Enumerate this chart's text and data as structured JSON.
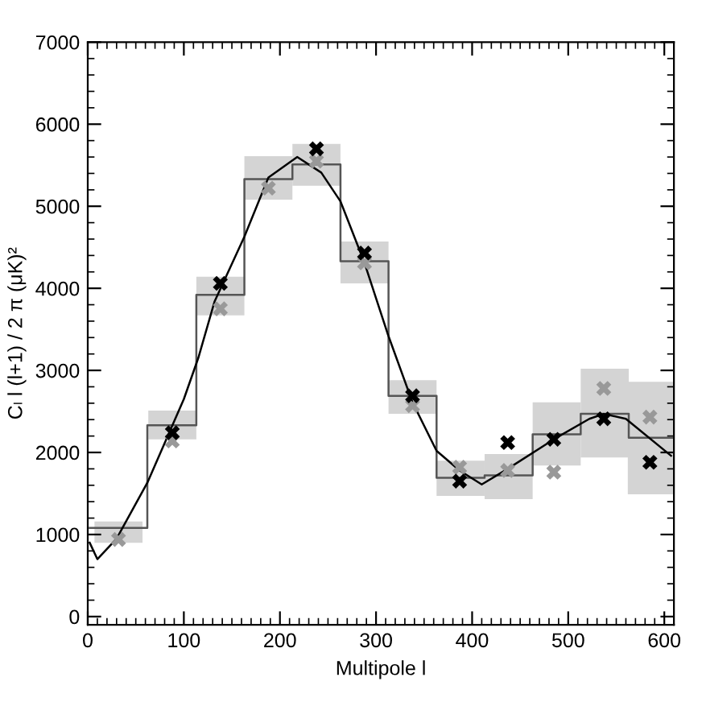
{
  "chart_data": {
    "type": "line",
    "xlabel": "Multipole l",
    "ylabel": "Cₗ l (l+1) / 2 π (μK)²",
    "xlim": [
      0,
      610
    ],
    "ylim": [
      -100,
      7000
    ],
    "xticks": [
      0,
      100,
      200,
      300,
      400,
      500,
      600
    ],
    "yticks": [
      0,
      1000,
      2000,
      3000,
      4000,
      5000,
      6000,
      7000
    ],
    "grid": false,
    "legend": false,
    "series": [
      {
        "type": "bar",
        "color": "#d4d4d4",
        "x": [
          32,
          88,
          138,
          188,
          238,
          288,
          338,
          388,
          438,
          488,
          538,
          587
        ],
        "base": [
          900,
          2160,
          3670,
          5080,
          5250,
          4060,
          2470,
          1470,
          1430,
          1840,
          1940,
          1490
        ],
        "values": [
          260,
          350,
          470,
          530,
          510,
          510,
          410,
          430,
          550,
          770,
          1080,
          1370
        ]
      },
      {
        "type": "step",
        "color": "#555555",
        "x": [
          2,
          62,
          113,
          163,
          213,
          263,
          313,
          363,
          413,
          463,
          513,
          563,
          610
        ],
        "values": [
          1080,
          2330,
          3920,
          5330,
          5510,
          4330,
          2690,
          1690,
          1720,
          2220,
          2470,
          2180,
          2180
        ]
      },
      {
        "color": "#000000",
        "marker": "none",
        "x": [
          2,
          10,
          30,
          62,
          100,
          115,
          132,
          163,
          188,
          218,
          243,
          263,
          288,
          312,
          338,
          363,
          387,
          410,
          437,
          485,
          522,
          537,
          560,
          607
        ],
        "values": [
          900,
          700,
          950,
          1630,
          2650,
          3150,
          3840,
          4630,
          5350,
          5600,
          5410,
          5060,
          4310,
          3450,
          2610,
          2020,
          1780,
          1610,
          1800,
          2160,
          2410,
          2470,
          2410,
          1960
        ]
      },
      {
        "type": "scatter",
        "color": "#999999",
        "marker": "cross",
        "x": [
          32,
          88,
          138,
          188,
          238,
          288,
          338,
          387,
          437,
          485,
          537,
          585
        ],
        "values": [
          940,
          2140,
          3750,
          5220,
          5550,
          4310,
          2570,
          1820,
          1780,
          1760,
          2780,
          2430
        ]
      },
      {
        "type": "scatter",
        "color": "#000000",
        "marker": "cross",
        "x": [
          88,
          138,
          238,
          288,
          338,
          387,
          437,
          485,
          537,
          585
        ],
        "values": [
          2240,
          4060,
          5700,
          4430,
          2690,
          1650,
          2120,
          2160,
          2410,
          1880
        ]
      }
    ]
  }
}
